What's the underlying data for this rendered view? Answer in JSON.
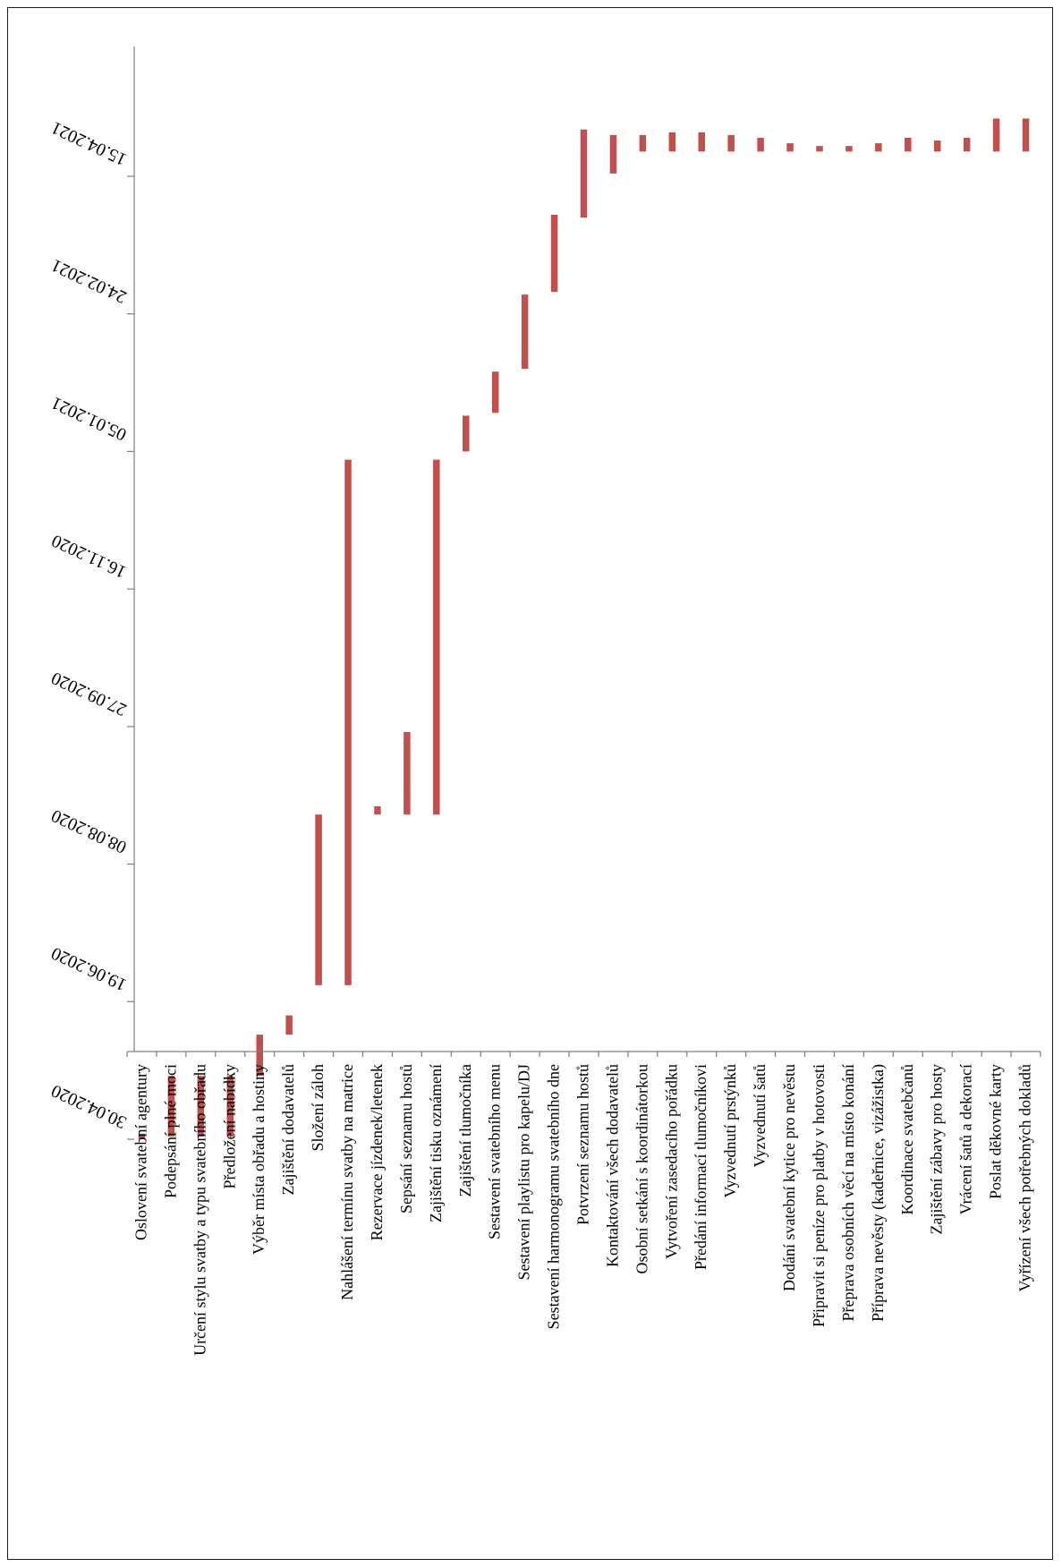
{
  "chart_data": {
    "type": "gantt",
    "bar_color": "#c0504d",
    "axis_color": "#7f7f7f",
    "tick_labels": [
      "30.04.2020",
      "19.06.2020",
      "08.08.2020",
      "27.09.2020",
      "16.11.2020",
      "05.01.2021",
      "24.02.2021",
      "15.04.2021"
    ],
    "tasks": [
      {
        "name": "Oslovení svatební agentury",
        "start": "2020-04-30",
        "end": "2020-05-02"
      },
      {
        "name": "Podepsání plné moci",
        "start": "2020-05-01",
        "end": "2020-05-23"
      },
      {
        "name": "Určení stylu svatby a typu svatebního obřadu",
        "start": "2020-05-01",
        "end": "2020-05-23"
      },
      {
        "name": "Předložení nabídky",
        "start": "2020-05-01",
        "end": "2020-05-23"
      },
      {
        "name": "Výběr místa obřadu a hostiny",
        "start": "2020-05-23",
        "end": "2020-06-07"
      },
      {
        "name": "Zajištění dodavatelů",
        "start": "2020-06-07",
        "end": "2020-06-14"
      },
      {
        "name": "Složení záloh",
        "start": "2020-06-25",
        "end": "2020-08-26"
      },
      {
        "name": "Nahlášení termínu svatby na matrice",
        "start": "2020-06-25",
        "end": "2021-01-02"
      },
      {
        "name": "Rezervace jízdenek/letenek",
        "start": "2020-08-26",
        "end": "2020-08-29"
      },
      {
        "name": "Sepsání seznamu hostů",
        "start": "2020-08-26",
        "end": "2020-09-25"
      },
      {
        "name": "Zajištění tisku oznámení",
        "start": "2020-08-26",
        "end": "2021-01-02"
      },
      {
        "name": "Zajištění tlumočníka",
        "start": "2021-01-05",
        "end": "2021-01-18"
      },
      {
        "name": "Sestavení svatebního menu",
        "start": "2021-01-19",
        "end": "2021-02-03"
      },
      {
        "name": "Sestavení playlistu pro kapelu/DJ",
        "start": "2021-02-04",
        "end": "2021-03-03"
      },
      {
        "name": "Sestavení harmonogramu svatebního dne",
        "start": "2021-03-04",
        "end": "2021-04-01"
      },
      {
        "name": "Potvrzení seznamu hostů",
        "start": "2021-03-31",
        "end": "2021-05-02"
      },
      {
        "name": "Kontaktování všech dodavatelů",
        "start": "2021-04-16",
        "end": "2021-04-30"
      },
      {
        "name": "Osobní setkání s koordinátorkou",
        "start": "2021-04-24",
        "end": "2021-04-30"
      },
      {
        "name": "Vytvoření zasedacího pořádku",
        "start": "2021-04-24",
        "end": "2021-05-01"
      },
      {
        "name": "Předání informací tlumočníkovi",
        "start": "2021-04-24",
        "end": "2021-05-01"
      },
      {
        "name": "Vyzvednutí prstýnků",
        "start": "2021-04-24",
        "end": "2021-04-30"
      },
      {
        "name": "Vyzvednutí šatů",
        "start": "2021-04-24",
        "end": "2021-04-29"
      },
      {
        "name": "Dodání svatební kytice pro nevěstu",
        "start": "2021-04-24",
        "end": "2021-04-27"
      },
      {
        "name": "Připravit si peníze pro platby v hotovosti",
        "start": "2021-04-24",
        "end": "2021-04-26"
      },
      {
        "name": "Přeprava osobních věcí na místo konání",
        "start": "2021-04-24",
        "end": "2021-04-26"
      },
      {
        "name": "Příprava nevěsty (kadeřnice, vizážistka)",
        "start": "2021-04-24",
        "end": "2021-04-27"
      },
      {
        "name": "Koordinace svatebčanů",
        "start": "2021-04-24",
        "end": "2021-04-29"
      },
      {
        "name": "Zajištění zábavy pro hosty",
        "start": "2021-04-24",
        "end": "2021-04-28"
      },
      {
        "name": "Vrácení šatů a dekorací",
        "start": "2021-04-24",
        "end": "2021-04-29"
      },
      {
        "name": "Poslat děkovné karty",
        "start": "2021-04-24",
        "end": "2021-05-06"
      },
      {
        "name": "Vyřízení všech potřebných dokladů",
        "start": "2021-04-24",
        "end": "2021-05-06"
      }
    ]
  }
}
